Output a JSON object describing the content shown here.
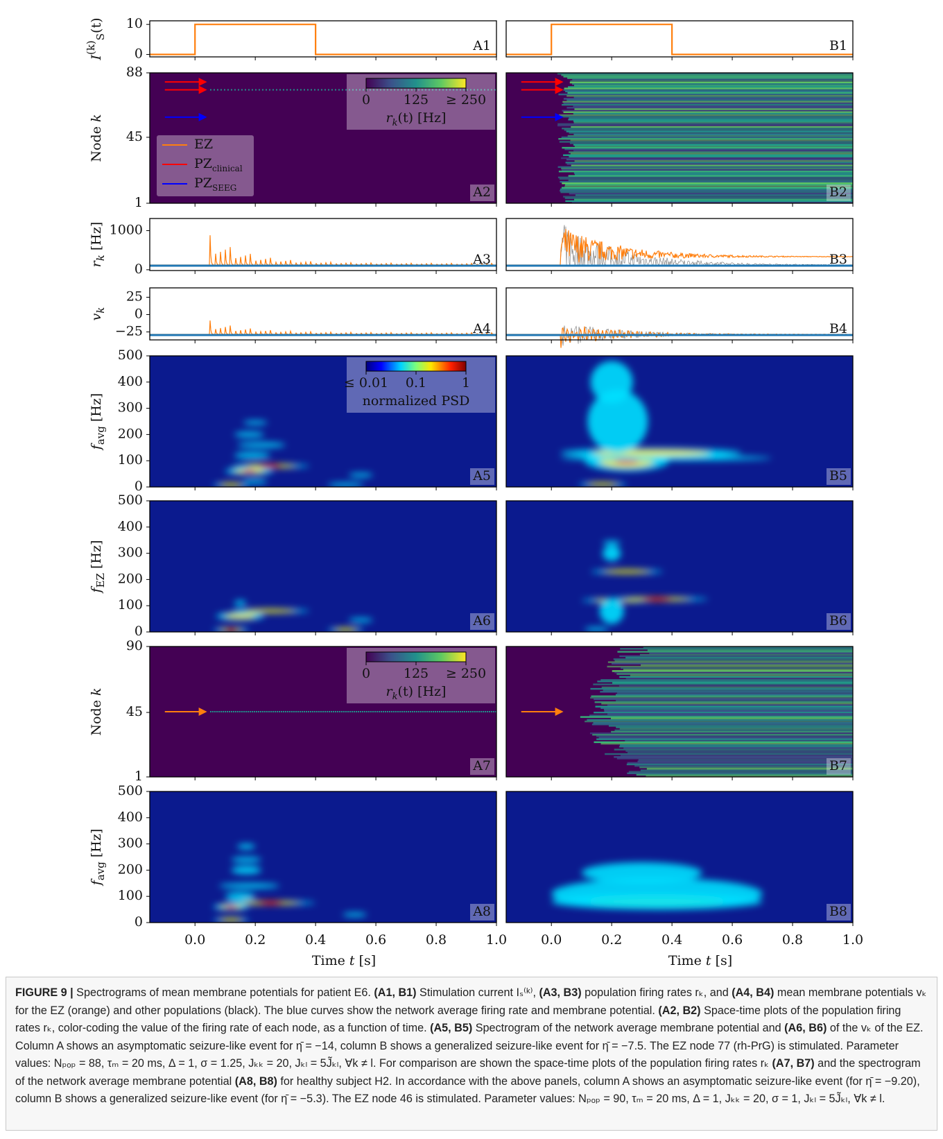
{
  "chart_data": [
    {
      "type": "line",
      "color": "#ff7f0e",
      "ylabel": [
        {
          "text": "I",
          "italic": true
        },
        {
          "text": "(k)",
          "sup": true
        },
        {
          "text": "S",
          "sub": true
        },
        {
          "text": "(t)"
        }
      ],
      "ylim": [
        -0.8,
        11.2
      ],
      "yticks": [
        0,
        10
      ],
      "panels": [
        {
          "label": "A1",
          "x": [
            -0.15,
            0,
            0,
            0.4,
            0.4,
            1.0
          ],
          "values": [
            0,
            0,
            10,
            10,
            0,
            0
          ]
        },
        {
          "label": "B1",
          "x": [
            -0.15,
            0,
            0,
            0.4,
            0.4,
            1.0
          ],
          "values": [
            0,
            0,
            10,
            10,
            0,
            0
          ]
        }
      ]
    },
    {
      "type": "heatmap",
      "ylabel": [
        {
          "text": "Node "
        },
        {
          "text": "k",
          "italic": true
        }
      ],
      "ylim": [
        1,
        88
      ],
      "yticks": [
        1,
        45,
        88
      ],
      "panels": [
        {
          "label": "A2"
        },
        {
          "label": "B2"
        }
      ],
      "colorbar": {
        "clim": [
          0,
          250
        ],
        "ticks": [
          0,
          125,
          {
            "value": 250,
            "label": "≥ 250"
          }
        ],
        "label": [
          {
            "text": "r",
            "italic": true
          },
          {
            "text": "k",
            "sub": true,
            "italic": true
          },
          {
            "text": "(t) [Hz]"
          }
        ]
      },
      "legend": [
        {
          "name": [
            {
              "text": "EZ"
            }
          ],
          "color": "#ff7f0e"
        },
        {
          "name": [
            {
              "text": "PZ"
            },
            {
              "text": "clinical",
              "sub": true
            }
          ],
          "color": "#ff0000"
        },
        {
          "name": [
            {
              "text": "PZ"
            },
            {
              "text": "SEEG",
              "sub": true
            }
          ],
          "color": "#0000ff"
        }
      ]
    },
    {
      "type": "trace",
      "ylabel": [
        {
          "text": "r",
          "italic": true
        },
        {
          "text": "k",
          "sub": true,
          "italic": true
        },
        {
          "text": " [Hz]"
        }
      ],
      "ylim": [
        -20,
        1310
      ],
      "yticks": [
        0,
        1000
      ],
      "panels": [
        {
          "label": "A3"
        },
        {
          "label": "B3"
        }
      ]
    },
    {
      "type": "trace",
      "ylabel": [
        {
          "text": "v",
          "italic": true
        },
        {
          "text": "k",
          "sub": true,
          "italic": true
        }
      ],
      "ylim": [
        -36.5,
        38.5
      ],
      "yticks": [
        {
          "value": -25,
          "label": "−25"
        },
        0,
        25
      ],
      "panels": [
        {
          "label": "A4"
        },
        {
          "label": "B4"
        }
      ]
    },
    {
      "type": "spectrogram",
      "ylabel_color": "#1f77b4",
      "ylabel": [
        {
          "text": "f",
          "italic": true
        },
        {
          "text": "avg",
          "sub": true
        },
        {
          "text": " [Hz]"
        }
      ],
      "ylim": [
        0,
        500
      ],
      "yticks": [
        0,
        100,
        200,
        300,
        400,
        500
      ],
      "panels": [
        {
          "label": "A5"
        },
        {
          "label": "B5"
        }
      ],
      "colorbar": {
        "clim": [
          0.01,
          1
        ],
        "log": true,
        "ticks": [
          {
            "value": 0.01,
            "label": "≤ 0.01"
          },
          0.1,
          1
        ],
        "label": [
          {
            "text": "normalized PSD"
          }
        ]
      }
    },
    {
      "type": "spectrogram",
      "ylabel_color": "#ff7f0e",
      "ylabel": [
        {
          "text": "f",
          "italic": true
        },
        {
          "text": "EZ",
          "sub": true
        },
        {
          "text": " [Hz]"
        }
      ],
      "ylim": [
        0,
        500
      ],
      "yticks": [
        0,
        100,
        200,
        300,
        400,
        500
      ],
      "panels": [
        {
          "label": "A6"
        },
        {
          "label": "B6"
        }
      ]
    },
    {
      "type": "heatmap",
      "ylabel": [
        {
          "text": "Node "
        },
        {
          "text": "k",
          "italic": true
        }
      ],
      "ylim": [
        1,
        90
      ],
      "yticks": [
        1,
        45,
        90
      ],
      "panels": [
        {
          "label": "A7"
        },
        {
          "label": "B7"
        }
      ],
      "colorbar": {
        "clim": [
          0,
          250
        ],
        "ticks": [
          0,
          125,
          {
            "value": 250,
            "label": "≥ 250"
          }
        ],
        "label": [
          {
            "text": "r",
            "italic": true
          },
          {
            "text": "k",
            "sub": true,
            "italic": true
          },
          {
            "text": "(t) [Hz]"
          }
        ]
      }
    },
    {
      "type": "spectrogram",
      "ylabel_color": "#1f77b4",
      "ylabel": [
        {
          "text": "f",
          "italic": true
        },
        {
          "text": "avg",
          "sub": true
        },
        {
          "text": " [Hz]"
        }
      ],
      "ylim": [
        0,
        500
      ],
      "yticks": [
        0,
        100,
        200,
        300,
        400,
        500
      ],
      "panels": [
        {
          "label": "A8"
        },
        {
          "label": "B8"
        }
      ]
    }
  ],
  "x_axis": {
    "xlim": [
      -0.15,
      1.0
    ],
    "xticks": [
      {
        "value": 0,
        "label": "0.0"
      },
      0.2,
      0.4,
      0.6,
      0.8,
      {
        "value": 1,
        "label": "1.0"
      }
    ],
    "xlabel": [
      {
        "text": "Time "
      },
      {
        "text": "t",
        "italic": true
      },
      {
        "text": " [s]"
      }
    ]
  },
  "caption": {
    "segments": [
      {
        "text": "FIGURE 9 |",
        "bold": true
      },
      {
        "text": " Spectrograms of mean membrane potentials for patient E6. "
      },
      {
        "text": "(A1, B1)",
        "bold": true
      },
      {
        "text": " Stimulation current Iₛ⁽ᵏ⁾, "
      },
      {
        "text": "(A3, B3)",
        "bold": true
      },
      {
        "text": " population firing rates rₖ, and "
      },
      {
        "text": "(A4, B4)",
        "bold": true
      },
      {
        "text": " mean membrane potentials vₖ for the EZ (orange) and other populations (black). The blue curves show the network average firing rate and membrane potential. "
      },
      {
        "text": "(A2, B2)",
        "bold": true
      },
      {
        "text": " Space-time plots of the population firing rates rₖ, color-coding the value of the firing rate of each node, as a function of time. "
      },
      {
        "text": "(A5, B5)",
        "bold": true
      },
      {
        "text": " Spectrogram of the network average membrane potential and "
      },
      {
        "text": "(A6, B6)",
        "bold": true
      },
      {
        "text": " of the vₖ of the EZ. Column A shows an asymptomatic seizure-like event for η̄ = −14, column B shows a generalized seizure-like event for η̄ = −7.5. The EZ node 77 (rh-PrG) is stimulated. Parameter values: Nₚₒₚ = 88, τₘ = 20 ms, Δ = 1, σ = 1.25, Jₖₖ = 20, Jₖₗ = 5J̃ₖₗ,  ∀k ≠ l. For comparison are shown the space-time plots of the population firing rates rₖ "
      },
      {
        "text": "(A7, B7)",
        "bold": true
      },
      {
        "text": " and the spectrogram of the network average membrane potential "
      },
      {
        "text": "(A8, B8)",
        "bold": true
      },
      {
        "text": " for healthy subject H2. In accordance with the above panels, column A shows an asymptomatic seizure-like event (for η̄ = −9.20), column B shows a generalized seizure-like event (for η̄ = −5.3). The EZ node 46 is stimulated. Parameter values: Nₚₒₚ = 90, τₘ = 20 ms, Δ = 1, Jₖₖ = 20, σ = 1, Jₖₗ = 5J̃ₖₗ,  ∀k ≠ l."
      }
    ]
  }
}
